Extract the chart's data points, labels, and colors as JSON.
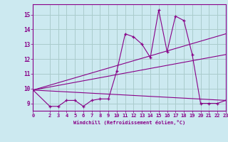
{
  "background_color": "#cce9f0",
  "grid_color": "#aacccc",
  "line_color": "#880088",
  "marker_color": "#880088",
  "xlim": [
    0,
    23
  ],
  "ylim": [
    8.5,
    15.7
  ],
  "xlabel": "Windchill (Refroidissement éolien,°C)",
  "xticks": [
    0,
    2,
    3,
    4,
    5,
    6,
    7,
    8,
    9,
    10,
    11,
    12,
    13,
    14,
    15,
    16,
    17,
    18,
    19,
    20,
    21,
    22,
    23
  ],
  "yticks": [
    9,
    10,
    11,
    12,
    13,
    14,
    15
  ],
  "line1_x": [
    0,
    2,
    3,
    4,
    5,
    6,
    7,
    8,
    9,
    10,
    11,
    12,
    13,
    14,
    15,
    16,
    17,
    18,
    19,
    20,
    21,
    22,
    23
  ],
  "line1_y": [
    9.9,
    8.8,
    8.8,
    9.2,
    9.2,
    8.8,
    9.2,
    9.3,
    9.3,
    11.2,
    13.7,
    13.5,
    13.0,
    12.1,
    15.3,
    12.5,
    14.9,
    14.6,
    12.3,
    9.0,
    9.0,
    9.0,
    9.2
  ],
  "line2_x": [
    0,
    23
  ],
  "line2_y": [
    9.9,
    13.7
  ],
  "line3_x": [
    0,
    23
  ],
  "line3_y": [
    9.9,
    9.2
  ],
  "line4_x": [
    0,
    23
  ],
  "line4_y": [
    9.9,
    12.3
  ]
}
